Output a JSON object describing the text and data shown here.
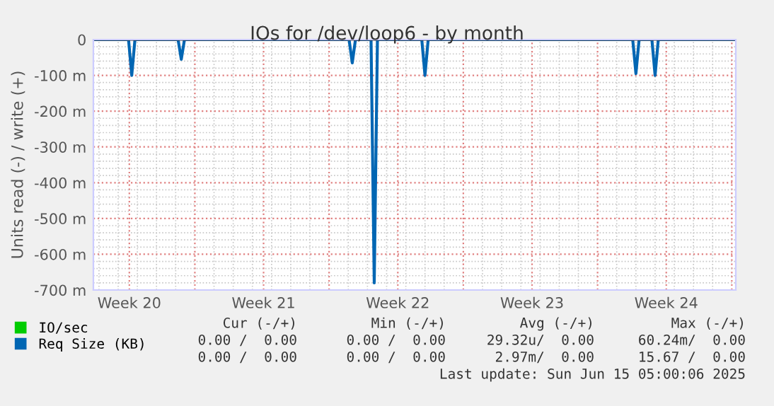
{
  "chart_data": {
    "type": "line",
    "title": "IOs for /dev/loop6 - by month",
    "ylabel": "Units read (-) / write (+)",
    "xlim": [
      "2025-05-12T17:00",
      "2025-06-15T05:00"
    ],
    "ylim": [
      -700,
      0
    ],
    "xticks": [
      {
        "value": "2025-05-14T14:00",
        "label": "Week 20"
      },
      {
        "value": "2025-05-18T00:00",
        "label": null
      },
      {
        "value": "2025-05-21T14:00",
        "label": "Week 21"
      },
      {
        "value": "2025-05-25T00:00",
        "label": null
      },
      {
        "value": "2025-05-28T14:00",
        "label": "Week 22"
      },
      {
        "value": "2025-06-01T00:00",
        "label": null
      },
      {
        "value": "2025-06-04T14:00",
        "label": "Week 23"
      },
      {
        "value": "2025-06-08T00:00",
        "label": null
      },
      {
        "value": "2025-06-11T14:00",
        "label": "Week 24"
      },
      {
        "value": "2025-06-15T00:00",
        "label": null
      }
    ],
    "yticks": [
      {
        "value": 0,
        "label": "0"
      },
      {
        "value": -100,
        "label": "-100 m"
      },
      {
        "value": -200,
        "label": "-200 m"
      },
      {
        "value": -300,
        "label": "-300 m"
      },
      {
        "value": -400,
        "label": "-400 m"
      },
      {
        "value": -500,
        "label": "-500 m"
      },
      {
        "value": -600,
        "label": "-600 m"
      },
      {
        "value": -700,
        "label": "-700 m"
      }
    ],
    "grid": true,
    "legend": "bottom left",
    "series": [
      {
        "name": "IO/sec",
        "color": "#00cc00"
      },
      {
        "name": "Req Size (KB)",
        "color": "#0066b3",
        "x": [
          "2025-05-12T17:00",
          "2025-05-14T13:00",
          "2025-05-14T17:00",
          "2025-05-14T21:00",
          "2025-05-17T03:00",
          "2025-05-17T07:00",
          "2025-05-17T11:00",
          "2025-05-26T01:00",
          "2025-05-26T05:00",
          "2025-05-26T09:00",
          "2025-05-27T04:30",
          "2025-05-27T08:30",
          "2025-05-27T12:30",
          "2025-05-29T20:00",
          "2025-05-30T00:00",
          "2025-05-30T04:00",
          "2025-06-09T20:00",
          "2025-06-10T00:00",
          "2025-06-10T04:00",
          "2025-06-10T20:00",
          "2025-06-11T00:00",
          "2025-06-11T04:00",
          "2025-06-15T05:00"
        ],
        "values": [
          0,
          0,
          -100,
          0,
          0,
          -55,
          0,
          0,
          -65,
          0,
          0,
          -680,
          0,
          0,
          -100,
          0,
          0,
          -95,
          0,
          0,
          -100,
          0,
          0
        ]
      }
    ],
    "annotations": [
      "Cur (-/+)",
      "Min (-/+)",
      "Avg (-/+)",
      "Max (-/+)",
      "0.00 /  0.00",
      "0.00 /  0.00",
      "29.32u/  0.00",
      "60.24m/  0.00",
      "0.00 /  0.00",
      "0.00 /  0.00",
      "2.97m/  0.00",
      "15.67 /  0.00",
      "Last update: Sun Jun 15 05:00:06 2025"
    ]
  }
}
